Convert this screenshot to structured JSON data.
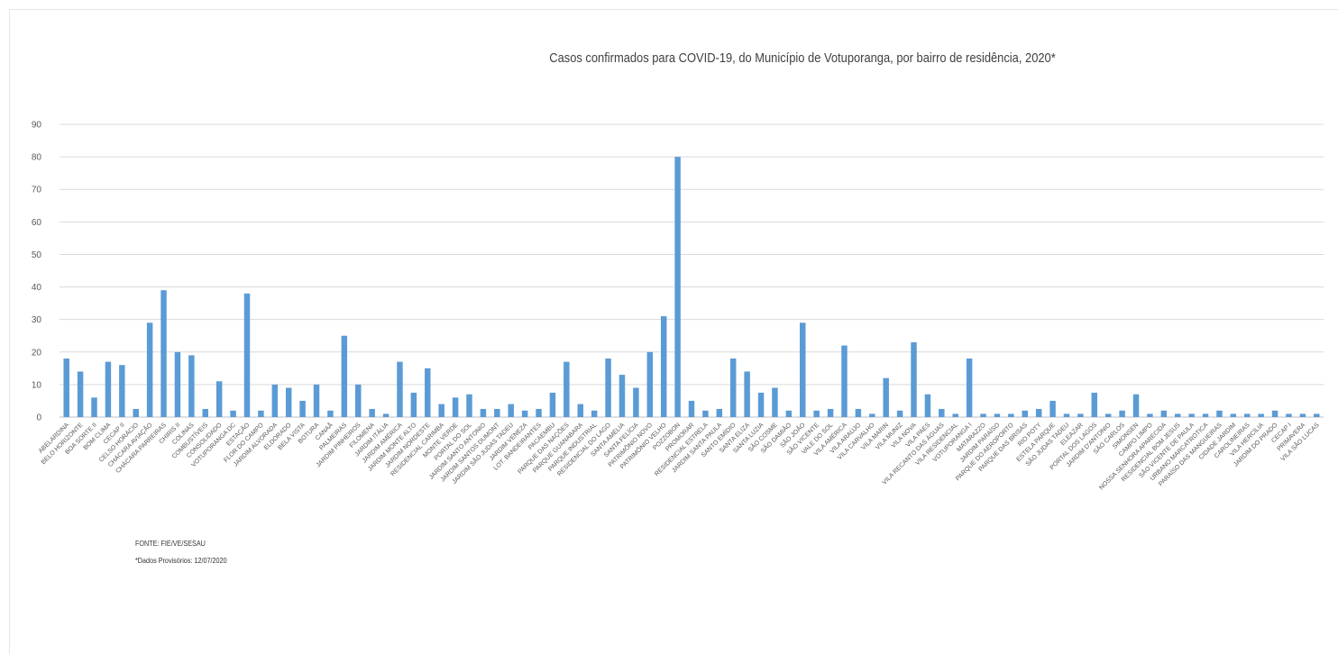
{
  "chart_data": {
    "type": "bar",
    "title": "Casos confirmados para COVID-19, do Município de Votuporanga, por bairro de residência, 2020*",
    "xlabel": "",
    "ylabel": "",
    "ylim": [
      0,
      90
    ],
    "yticks": [
      0,
      10,
      20,
      30,
      40,
      50,
      60,
      70,
      80,
      90
    ],
    "grid": true,
    "bar_color": "#5b9bd5",
    "categories": [
      "ABELARDINA",
      "BELO HORIZONTE",
      "BOA SORTE II",
      "BOM CLIMA",
      "CECAP II",
      "CELSO HORÁCIO",
      "CHÁCARA AVIAÇÃO",
      "CHÁCARA PARREIRAS",
      "CHIRIS II",
      "COLINAS",
      "COMBUSTÍVEIS",
      "CONSOLIDADO",
      "VOTUPORANGA DC",
      "ESTAÇÃO",
      "FLOR DO CAMPO",
      "JARDIM ALVORADA",
      "ELDORADO",
      "BELA VISTA",
      "BOTURA",
      "CANAÃ",
      "PALMEIRAS",
      "JARDIM PINHEIROS",
      "FILOMENA",
      "JARDIM ITÁLIA",
      "JARDIM AMÉRICA",
      "JARDIM MONTE ALTO",
      "JARDIM NORDESTE",
      "RESIDENCIAL CARIMBA",
      "MONTE VERDE",
      "PORTAL DO SOL",
      "JARDIM SANTO ANTONIO",
      "JARDIM SANTOS DUMONT",
      "JARDIM SÃO JUDAS TADEU",
      "JARDIM VENEZA",
      "LOT. BANDEIRANTES",
      "PACAEMBU",
      "PARQUE DAS NAÇÕES",
      "PARQUE GUANABARA",
      "PARQUE INDUSTRIAL",
      "RESIDENCIAL DO LAGO",
      "SANTA AMÉLIA",
      "SANTA FELÍCIA",
      "PATRIMÔNIO NOVO",
      "PATRIMÔNIO VELHO",
      "POZZOBON",
      "PROMORAR",
      "RESIDENCIAL ESTRELA",
      "JARDIM SANTA PAULA",
      "SANTO EMÍDIO",
      "SANTA ELIZA",
      "SANTA LUZIA",
      "SÃO COSME",
      "SÃO DAMIÃO",
      "SÃO JOÃO",
      "SÃO VICENTE",
      "VALE DO SOL",
      "VILA AMÉRICA",
      "VILA ARAÚJO",
      "VILA CARVALHO",
      "VILA MARIN",
      "VILA MUNIZ",
      "VILA NOVA",
      "VILA PAES",
      "VILA RECANTO DAS ÁGUAS",
      "VILA RESIDENCIAL",
      "VOTUPORANGA I",
      "MATARAZZO",
      "JARDIM PARAÍSO",
      "PARQUE DO AEROPORTO",
      "PARQUE DAS BRISAS",
      "RIO POTY",
      "ESTELA PARQUE",
      "SÃO JUDAS TADEU",
      "ELEAZAR",
      "PORTAL DOS LAGOS",
      "JARDIM D'ANTONIO",
      "SÃO CARLOS",
      "SIMONSEN",
      "CAMPO LIMPO",
      "NOSSA SENHORA APARECIDA",
      "RESIDENCIAL BOM JESUS",
      "SÃO VICENTE DE PAULA",
      "URBANO MARCATROTICA",
      "PARAÍSO DAS MANGUEIRAS",
      "CIDADE JARDIM",
      "CAROLINEIRAS",
      "VILA HERCÍLIA",
      "JARDIM DO PRADO",
      "CECAP I",
      "PRIMAVERA",
      "VILA SÃO LUCAS"
    ],
    "values": [
      18,
      14,
      6,
      17,
      16,
      2.5,
      29,
      39,
      20,
      19,
      2.5,
      11,
      2,
      38,
      2,
      10,
      9,
      5,
      10,
      2,
      25,
      10,
      2.5,
      1,
      17,
      7.5,
      15,
      4,
      6,
      7,
      2.5,
      2.5,
      4,
      2,
      2.5,
      7.5,
      17,
      4,
      2,
      18,
      13,
      9,
      20,
      31,
      80,
      5,
      2,
      2.5,
      18,
      14,
      7.5,
      9,
      2,
      29,
      2,
      2.5,
      22,
      2.5,
      1,
      12,
      2,
      23,
      7,
      2.5,
      1,
      18,
      1,
      1,
      1,
      2,
      2.5,
      5,
      1,
      1,
      7.5,
      1,
      2,
      7,
      1,
      2,
      1,
      1,
      1,
      2,
      1,
      1,
      1,
      2,
      1,
      1,
      1
    ]
  },
  "notes": {
    "source": "FONTE: FIE/VE/SESAU",
    "provisional": "*Dados Provisórios: 12/07/2020"
  }
}
